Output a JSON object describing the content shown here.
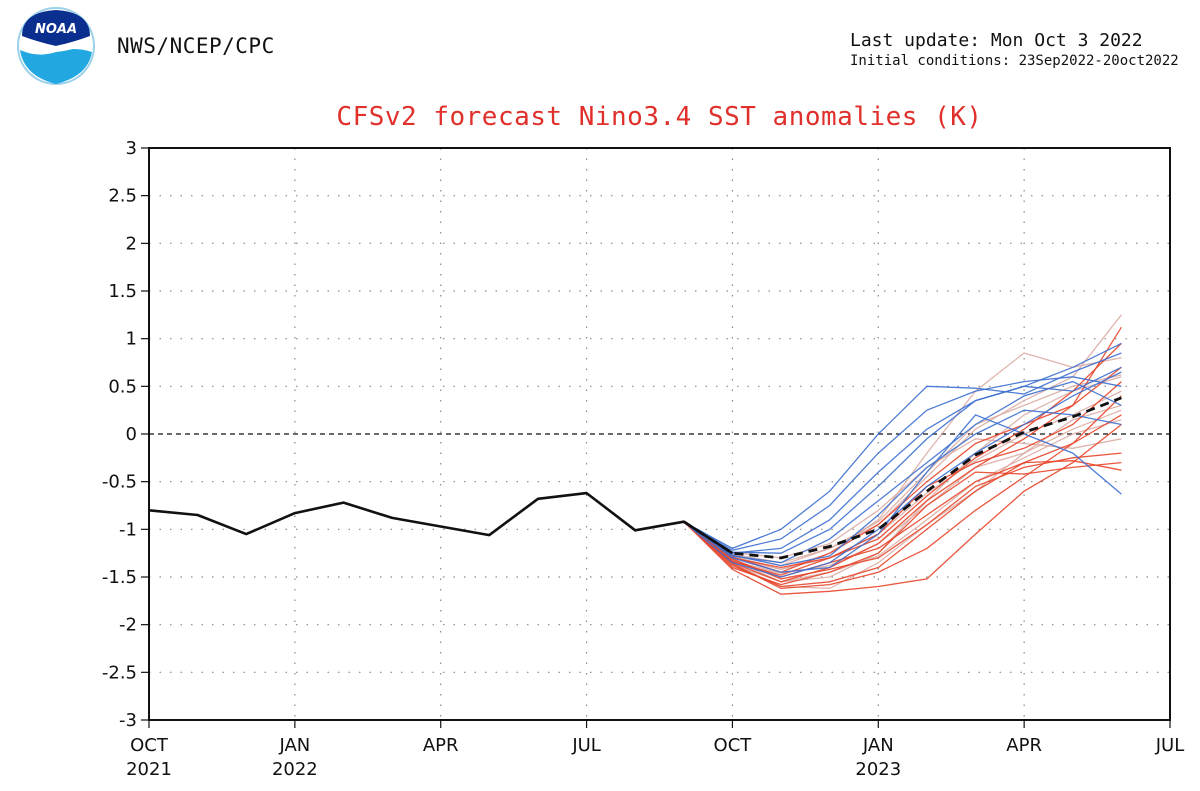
{
  "header": {
    "org": "NWS/NCEP/CPC",
    "logo_text": "NOAA",
    "last_update": "Last update: Mon Oct 3 2022",
    "initial_conditions": "Initial conditions: 23Sep2022-20oct2022"
  },
  "colors": {
    "title": "#e0302c",
    "observed": "#111111",
    "ensemble_mean": "#111111",
    "member_blue": "#3c6fd0",
    "member_red": "#e8452a",
    "member_pink": "#d9a8a0",
    "zero_line": "#111111",
    "grid": "#888888"
  },
  "chart_data": {
    "type": "line",
    "title": "CFSv2 forecast Nino3.4 SST anomalies (K)",
    "xlabel": "",
    "ylabel": "",
    "ylim": [
      -3,
      3
    ],
    "yticks": [
      3,
      2.5,
      2,
      1.5,
      1,
      0.5,
      0,
      -0.5,
      -1,
      -1.5,
      -2,
      -2.5,
      -3
    ],
    "xlim": [
      "2021-10",
      "2023-07"
    ],
    "xticks": [
      {
        "month": "2021-10",
        "label": "OCT",
        "year": "2021"
      },
      {
        "month": "2022-01",
        "label": "JAN",
        "year": "2022"
      },
      {
        "month": "2022-04",
        "label": "APR",
        "year": ""
      },
      {
        "month": "2022-07",
        "label": "JUL",
        "year": ""
      },
      {
        "month": "2022-10",
        "label": "OCT",
        "year": ""
      },
      {
        "month": "2023-01",
        "label": "JAN",
        "year": "2023"
      },
      {
        "month": "2023-04",
        "label": "APR",
        "year": ""
      },
      {
        "month": "2023-07",
        "label": "JUL",
        "year": ""
      }
    ],
    "grid": true,
    "zero_line": true,
    "observed": {
      "x": [
        "2021-10",
        "2021-11",
        "2021-12",
        "2022-01",
        "2022-02",
        "2022-03",
        "2022-04",
        "2022-05",
        "2022-06",
        "2022-07",
        "2022-08",
        "2022-09",
        "2022-10"
      ],
      "y": [
        -0.8,
        -0.85,
        -1.05,
        -0.83,
        -0.72,
        -0.88,
        -0.97,
        -1.06,
        -0.68,
        -0.62,
        -1.01,
        -0.92,
        -1.25
      ]
    },
    "forecast_months": [
      "2022-09",
      "2022-10",
      "2022-11",
      "2022-12",
      "2023-01",
      "2023-02",
      "2023-03",
      "2023-04",
      "2023-05",
      "2023-06"
    ],
    "ensemble_mean": [
      -0.92,
      -1.25,
      -1.3,
      -1.18,
      -1.0,
      -0.6,
      -0.22,
      0.02,
      0.18,
      0.38
    ],
    "members": [
      {
        "color": "blue",
        "values": [
          -0.92,
          -1.2,
          -1.0,
          -0.6,
          0.0,
          0.5,
          0.48,
          0.42,
          0.65,
          0.85
        ]
      },
      {
        "color": "blue",
        "values": [
          -0.92,
          -1.22,
          -1.1,
          -0.75,
          -0.2,
          0.25,
          0.45,
          0.55,
          0.6,
          0.5
        ]
      },
      {
        "color": "blue",
        "values": [
          -0.92,
          -1.25,
          -1.2,
          -0.9,
          -0.4,
          0.05,
          0.35,
          0.5,
          0.7,
          0.95
        ]
      },
      {
        "color": "blue",
        "values": [
          -0.92,
          -1.28,
          -1.35,
          -1.1,
          -0.7,
          -0.3,
          0.1,
          0.4,
          0.55,
          0.3
        ]
      },
      {
        "color": "blue",
        "values": [
          -0.92,
          -1.3,
          -1.45,
          -1.4,
          -1.05,
          -0.4,
          0.2,
          0.0,
          -0.2,
          -0.63
        ]
      },
      {
        "color": "blue",
        "values": [
          -0.92,
          -1.24,
          -1.25,
          -1.0,
          -0.55,
          -0.05,
          0.35,
          0.5,
          0.45,
          0.7
        ]
      },
      {
        "color": "blue",
        "values": [
          -0.92,
          -1.35,
          -1.5,
          -1.35,
          -1.0,
          -0.55,
          -0.2,
          0.1,
          0.4,
          0.65
        ]
      },
      {
        "color": "blue",
        "values": [
          -0.92,
          -1.27,
          -1.38,
          -1.28,
          -0.85,
          -0.35,
          0.0,
          0.25,
          0.2,
          0.1
        ]
      },
      {
        "color": "red",
        "values": [
          -0.92,
          -1.38,
          -1.6,
          -1.55,
          -1.4,
          -1.0,
          -0.6,
          -0.3,
          -0.1,
          0.4
        ]
      },
      {
        "color": "red",
        "values": [
          -0.92,
          -1.42,
          -1.68,
          -1.65,
          -1.6,
          -1.52,
          -1.05,
          -0.6,
          -0.3,
          0.1
        ]
      },
      {
        "color": "red",
        "values": [
          -0.92,
          -1.35,
          -1.55,
          -1.4,
          -1.15,
          -0.7,
          -0.35,
          -0.05,
          0.3,
          1.12
        ]
      },
      {
        "color": "red",
        "values": [
          -0.92,
          -1.3,
          -1.4,
          -1.3,
          -1.05,
          -0.55,
          -0.3,
          -0.15,
          0.1,
          0.55
        ]
      },
      {
        "color": "red",
        "values": [
          -0.92,
          -1.33,
          -1.5,
          -1.35,
          -1.2,
          -0.85,
          -0.5,
          -0.3,
          -0.28,
          -0.38
        ]
      },
      {
        "color": "red",
        "values": [
          -0.92,
          -1.36,
          -1.62,
          -1.58,
          -1.45,
          -1.2,
          -0.8,
          -0.45,
          -0.1,
          0.2
        ]
      },
      {
        "color": "red",
        "values": [
          -0.92,
          -1.29,
          -1.45,
          -1.25,
          -0.95,
          -0.5,
          -0.1,
          0.1,
          0.3,
          0.7
        ]
      },
      {
        "color": "red",
        "values": [
          -0.92,
          -1.31,
          -1.52,
          -1.42,
          -1.3,
          -0.95,
          -0.55,
          -0.35,
          -0.25,
          -0.2
        ]
      },
      {
        "color": "red",
        "values": [
          -0.92,
          -1.4,
          -1.58,
          -1.45,
          -1.25,
          -0.75,
          -0.4,
          -0.42,
          -0.35,
          -0.3
        ]
      },
      {
        "color": "red",
        "values": [
          -0.92,
          -1.34,
          -1.48,
          -1.3,
          -1.1,
          -0.65,
          -0.25,
          0.05,
          0.45,
          0.95
        ]
      },
      {
        "color": "pink",
        "values": [
          -0.92,
          -1.26,
          -1.35,
          -1.2,
          -0.95,
          -0.45,
          0.05,
          0.35,
          0.6,
          1.25
        ]
      },
      {
        "color": "pink",
        "values": [
          -0.92,
          -1.32,
          -1.55,
          -1.5,
          -1.25,
          -0.7,
          -0.2,
          0.2,
          0.45,
          0.6
        ]
      },
      {
        "color": "pink",
        "values": [
          -0.92,
          -1.28,
          -1.42,
          -1.25,
          -0.9,
          -0.2,
          0.45,
          0.85,
          0.7,
          0.8
        ]
      },
      {
        "color": "pink",
        "values": [
          -0.92,
          -1.36,
          -1.6,
          -1.62,
          -1.35,
          -0.95,
          -0.6,
          -0.2,
          0.15,
          0.3
        ]
      },
      {
        "color": "pink",
        "values": [
          -0.92,
          -1.24,
          -1.3,
          -1.15,
          -0.8,
          -0.35,
          -0.05,
          -0.1,
          -0.15,
          -0.05
        ]
      },
      {
        "color": "pink",
        "values": [
          -0.92,
          -1.33,
          -1.46,
          -1.38,
          -1.15,
          -0.75,
          -0.35,
          -0.2,
          0.05,
          0.25
        ]
      },
      {
        "color": "pink",
        "values": [
          -0.92,
          -1.3,
          -1.42,
          -1.3,
          -1.05,
          -0.62,
          -0.28,
          0.0,
          0.2,
          0.45
        ]
      },
      {
        "color": "pink",
        "values": [
          -0.92,
          -1.37,
          -1.55,
          -1.45,
          -1.28,
          -0.9,
          -0.5,
          -0.25,
          0.0,
          0.15
        ]
      },
      {
        "color": "pink",
        "values": [
          -0.92,
          -1.27,
          -1.38,
          -1.2,
          -0.92,
          -0.4,
          0.1,
          0.3,
          0.5,
          0.62
        ]
      }
    ]
  }
}
